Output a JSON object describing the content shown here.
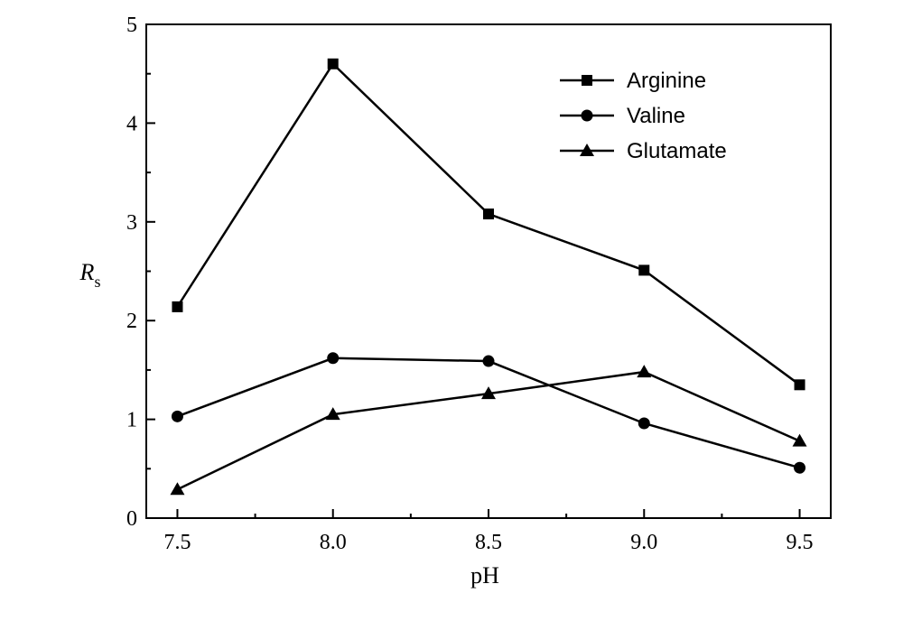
{
  "chart_data": {
    "type": "line",
    "title": "",
    "xlabel": "pH",
    "ylabel_main": "R",
    "ylabel_sub": "s",
    "xlim": [
      7.4,
      9.6
    ],
    "ylim": [
      0,
      5
    ],
    "x_ticks": [
      7.5,
      8.0,
      8.5,
      9.0,
      9.5
    ],
    "x_tick_labels": [
      "7.5",
      "8.0",
      "8.5",
      "9.0",
      "9.5"
    ],
    "x_minor_ticks": [
      7.75,
      8.25,
      8.75,
      9.25
    ],
    "y_ticks": [
      0,
      1,
      2,
      3,
      4,
      5
    ],
    "y_tick_labels": [
      "0",
      "1",
      "2",
      "3",
      "4",
      "5"
    ],
    "y_minor_ticks": [
      0.5,
      1.5,
      2.5,
      3.5,
      4.5
    ],
    "grid": false,
    "legend_position": "top-right",
    "x": [
      7.5,
      8.0,
      8.5,
      9.0,
      9.5
    ],
    "series": [
      {
        "name": "Arginine",
        "marker": "square",
        "values": [
          2.14,
          4.6,
          3.08,
          2.51,
          1.35
        ]
      },
      {
        "name": "Valine",
        "marker": "circle",
        "values": [
          1.03,
          1.62,
          1.59,
          0.96,
          0.51
        ]
      },
      {
        "name": "Glutamate",
        "marker": "triangle",
        "values": [
          0.29,
          1.05,
          1.26,
          1.48,
          0.78
        ]
      }
    ],
    "line_color": "#000000"
  }
}
